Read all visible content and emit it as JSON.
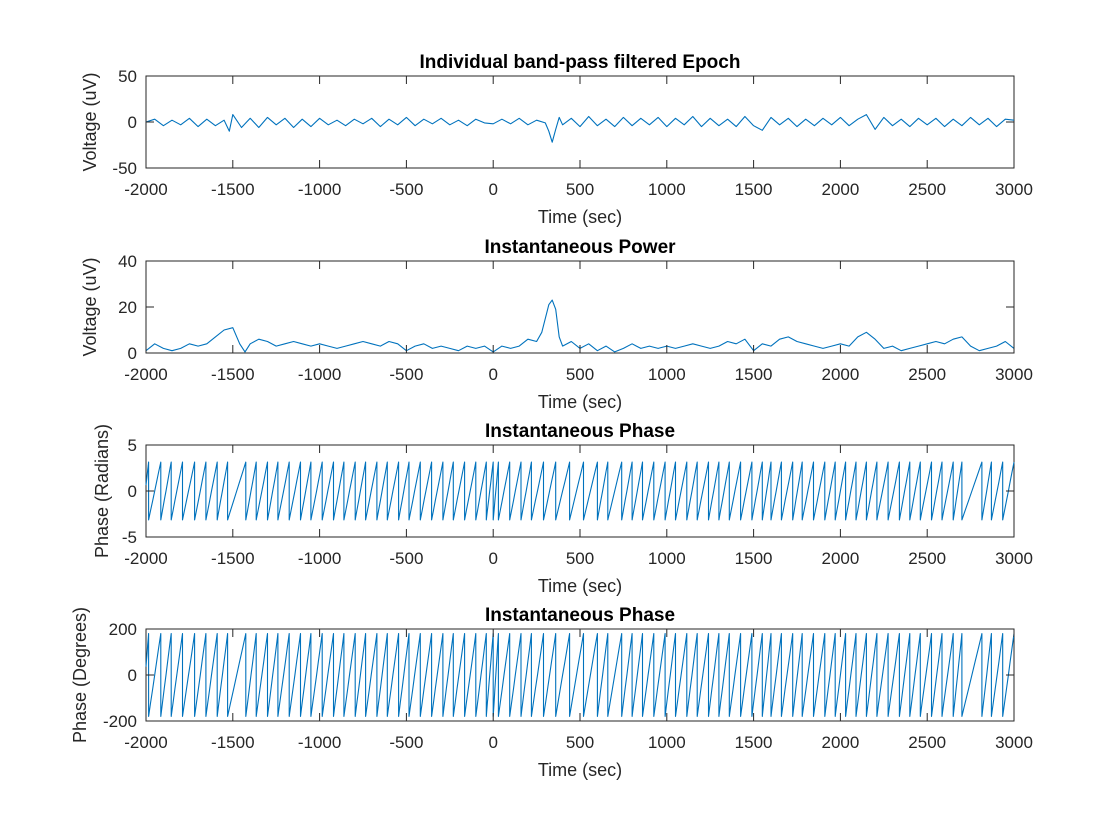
{
  "chart_data": [
    {
      "type": "line",
      "title": "Individual band-pass filtered Epoch",
      "xlabel": "Time (sec)",
      "ylabel": "Voltage (uV)",
      "xlim": [
        -2000,
        3000
      ],
      "ylim": [
        -50,
        50
      ],
      "xticks": [
        "-2000",
        "-1500",
        "-1000",
        "-500",
        "0",
        "500",
        "1000",
        "1500",
        "2000",
        "2500",
        "3000"
      ],
      "yticks": [
        "-50",
        "0",
        "50"
      ],
      "series": [
        {
          "color": "#0072BD",
          "x": [
            -2000,
            -1950,
            -1900,
            -1850,
            -1800,
            -1750,
            -1700,
            -1650,
            -1600,
            -1550,
            -1520,
            -1500,
            -1450,
            -1400,
            -1350,
            -1300,
            -1250,
            -1200,
            -1150,
            -1100,
            -1050,
            -1000,
            -950,
            -900,
            -850,
            -800,
            -750,
            -700,
            -650,
            -600,
            -550,
            -500,
            -450,
            -400,
            -350,
            -300,
            -250,
            -200,
            -150,
            -100,
            -50,
            0,
            50,
            100,
            150,
            200,
            250,
            300,
            320,
            340,
            360,
            380,
            400,
            450,
            500,
            550,
            600,
            650,
            700,
            750,
            800,
            850,
            900,
            950,
            1000,
            1050,
            1100,
            1150,
            1200,
            1250,
            1300,
            1350,
            1400,
            1450,
            1500,
            1550,
            1600,
            1650,
            1700,
            1750,
            1800,
            1850,
            1900,
            1950,
            2000,
            2050,
            2100,
            2150,
            2200,
            2250,
            2300,
            2350,
            2400,
            2450,
            2500,
            2550,
            2600,
            2650,
            2700,
            2750,
            2800,
            2850,
            2900,
            2950,
            3000
          ],
          "y": [
            0,
            3,
            -4,
            2,
            -3,
            4,
            -5,
            3,
            -4,
            2,
            -10,
            8,
            -6,
            4,
            -6,
            5,
            -3,
            4,
            -6,
            3,
            -5,
            4,
            -3,
            2,
            -4,
            3,
            -2,
            4,
            -5,
            3,
            -3,
            5,
            -4,
            3,
            -2,
            4,
            -3,
            2,
            -4,
            3,
            -1,
            -2,
            3,
            -2,
            4,
            -3,
            2,
            -1,
            -10,
            -22,
            -8,
            5,
            -3,
            4,
            -5,
            6,
            -4,
            3,
            -5,
            5,
            -4,
            4,
            -3,
            5,
            -5,
            4,
            -3,
            6,
            -5,
            4,
            -4,
            3,
            -5,
            6,
            -4,
            -9,
            5,
            -3,
            4,
            -5,
            3,
            -4,
            4,
            -3,
            5,
            -4,
            3,
            8,
            -8,
            5,
            -4,
            3,
            -5,
            4,
            -3,
            4,
            -5,
            3,
            -4,
            5,
            -3,
            4,
            -5,
            3,
            2
          ]
        }
      ]
    },
    {
      "type": "line",
      "title": "Instantaneous Power",
      "xlabel": "Time (sec)",
      "ylabel": "Voltage (uV)",
      "xlim": [
        -2000,
        3000
      ],
      "ylim": [
        0,
        40
      ],
      "xticks": [
        "-2000",
        "-1500",
        "-1000",
        "-500",
        "0",
        "500",
        "1000",
        "1500",
        "2000",
        "2500",
        "3000"
      ],
      "yticks": [
        "0",
        "20",
        "40"
      ],
      "series": [
        {
          "color": "#0072BD",
          "x": [
            -2000,
            -1950,
            -1900,
            -1850,
            -1800,
            -1750,
            -1700,
            -1650,
            -1600,
            -1550,
            -1500,
            -1460,
            -1430,
            -1400,
            -1350,
            -1300,
            -1250,
            -1200,
            -1150,
            -1100,
            -1050,
            -1000,
            -950,
            -900,
            -850,
            -800,
            -750,
            -700,
            -650,
            -600,
            -550,
            -500,
            -450,
            -400,
            -350,
            -300,
            -250,
            -200,
            -150,
            -100,
            -50,
            0,
            50,
            100,
            150,
            200,
            250,
            280,
            300,
            320,
            340,
            360,
            380,
            400,
            450,
            500,
            550,
            600,
            650,
            700,
            750,
            800,
            850,
            900,
            950,
            1000,
            1050,
            1100,
            1150,
            1200,
            1250,
            1300,
            1350,
            1400,
            1450,
            1500,
            1550,
            1600,
            1650,
            1700,
            1750,
            1800,
            1850,
            1900,
            1950,
            2000,
            2050,
            2100,
            2150,
            2200,
            2250,
            2300,
            2350,
            2400,
            2450,
            2500,
            2550,
            2600,
            2650,
            2700,
            2750,
            2800,
            2850,
            2900,
            2950,
            3000
          ],
          "y": [
            1,
            4,
            2,
            1,
            2,
            4,
            3,
            4,
            7,
            10,
            11,
            4,
            0.5,
            4,
            6,
            5,
            3,
            4,
            5,
            4,
            3,
            4,
            3,
            2,
            3,
            4,
            5,
            4,
            3,
            5,
            4,
            1,
            3,
            4,
            2,
            3,
            2,
            1,
            3,
            2,
            3,
            0.5,
            3,
            2,
            3,
            6,
            5,
            9,
            15,
            21,
            23,
            19,
            7,
            3,
            5,
            2,
            4,
            1,
            3,
            0.5,
            2,
            4,
            2,
            3,
            2,
            3,
            2,
            3,
            4,
            3,
            2,
            3,
            5,
            4,
            6,
            1,
            4,
            3,
            6,
            7,
            5,
            4,
            3,
            2,
            3,
            4,
            3,
            7,
            9,
            6,
            2,
            3,
            1,
            2,
            3,
            4,
            5,
            4,
            6,
            7,
            3,
            1,
            2,
            3,
            5,
            2
          ]
        }
      ]
    },
    {
      "type": "line",
      "title": "Instantaneous Phase",
      "xlabel": "Time (sec)",
      "ylabel": "Phase (Radians)",
      "xlim": [
        -2000,
        3000
      ],
      "ylim": [
        -5,
        5
      ],
      "xticks": [
        "-2000",
        "-1500",
        "-1000",
        "-500",
        "0",
        "500",
        "1000",
        "1500",
        "2000",
        "2500",
        "3000"
      ],
      "yticks": [
        "-5",
        "0",
        "5"
      ],
      "unit_max": 3.1416,
      "series": [
        {
          "color": "#0072BD",
          "wrap_times": [
            -1985,
            -1915,
            -1855,
            -1790,
            -1720,
            -1655,
            -1590,
            -1530,
            -1425,
            -1365,
            -1300,
            -1240,
            -1175,
            -1110,
            -1050,
            -985,
            -920,
            -860,
            -795,
            -735,
            -670,
            -610,
            -545,
            -485,
            -420,
            -355,
            -290,
            -230,
            -165,
            -100,
            -40,
            0,
            30,
            95,
            160,
            220,
            290,
            360,
            440,
            520,
            600,
            660,
            740,
            800,
            860,
            925,
            990,
            1050,
            1115,
            1175,
            1240,
            1300,
            1360,
            1425,
            1490,
            1550,
            1600,
            1660,
            1725,
            1780,
            1845,
            1910,
            1970,
            2030,
            2090,
            2150,
            2210,
            2275,
            2340,
            2400,
            2460,
            2525,
            2585,
            2650,
            2700,
            2815,
            2870,
            2935,
            3000
          ]
        }
      ]
    },
    {
      "type": "line",
      "title": "Instantaneous Phase",
      "xlabel": "Time (sec)",
      "ylabel": "Phase (Degrees)",
      "xlim": [
        -2000,
        3000
      ],
      "ylim": [
        -200,
        200
      ],
      "xticks": [
        "-2000",
        "-1500",
        "-1000",
        "-500",
        "0",
        "500",
        "1000",
        "1500",
        "2000",
        "2500",
        "3000"
      ],
      "yticks": [
        "-200",
        "0",
        "200"
      ],
      "unit_max": 180,
      "series": [
        {
          "color": "#0072BD",
          "wrap_times": [
            -1985,
            -1915,
            -1855,
            -1790,
            -1720,
            -1655,
            -1590,
            -1530,
            -1425,
            -1365,
            -1300,
            -1240,
            -1175,
            -1110,
            -1050,
            -985,
            -920,
            -860,
            -795,
            -735,
            -670,
            -610,
            -545,
            -485,
            -420,
            -355,
            -290,
            -230,
            -165,
            -100,
            -40,
            0,
            30,
            95,
            160,
            220,
            290,
            360,
            440,
            520,
            600,
            660,
            740,
            800,
            860,
            925,
            990,
            1050,
            1115,
            1175,
            1240,
            1300,
            1360,
            1425,
            1490,
            1550,
            1600,
            1660,
            1725,
            1780,
            1845,
            1910,
            1970,
            2030,
            2090,
            2150,
            2210,
            2275,
            2340,
            2400,
            2460,
            2525,
            2585,
            2650,
            2700,
            2815,
            2870,
            2935,
            3000
          ]
        }
      ]
    }
  ]
}
